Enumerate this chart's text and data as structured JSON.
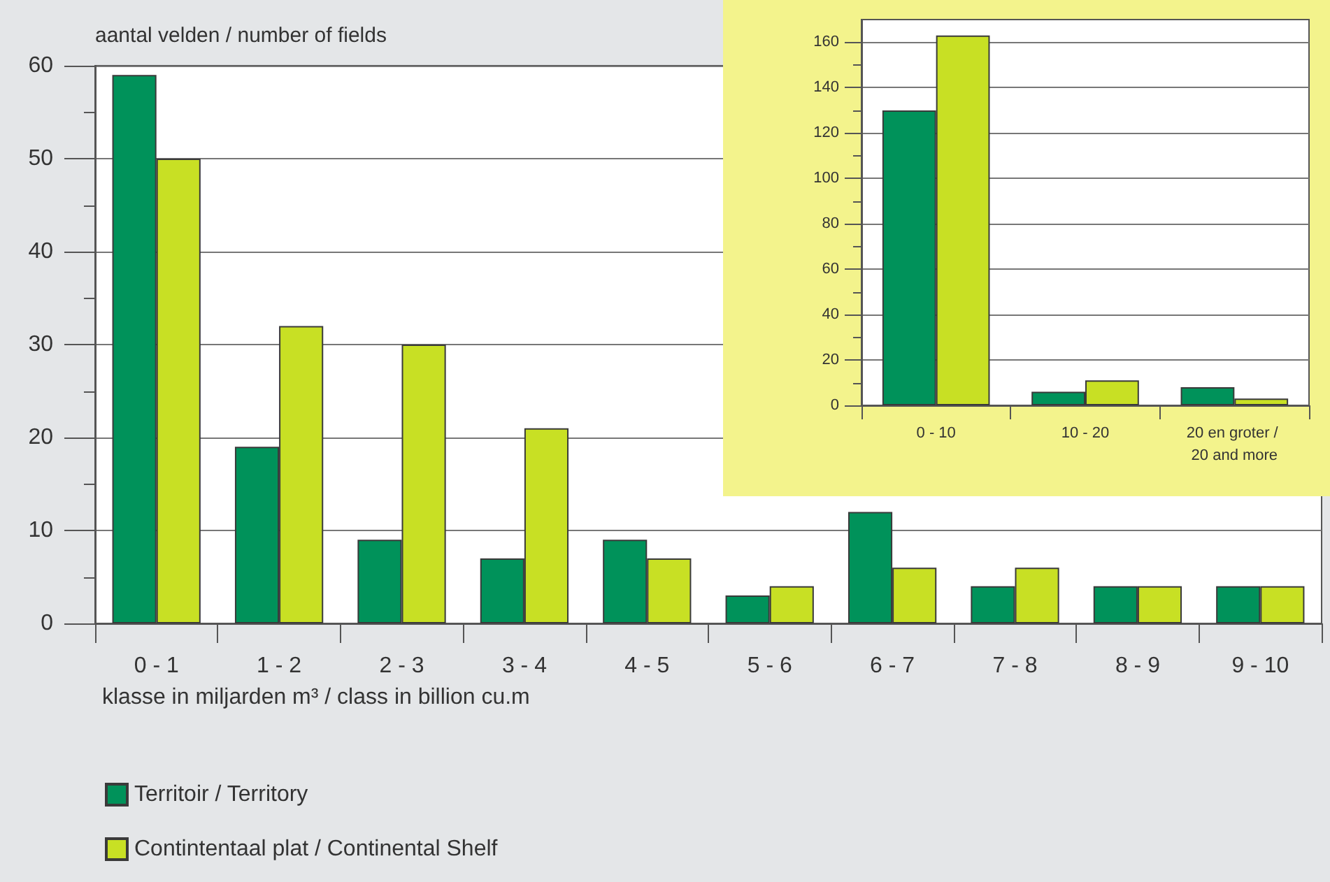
{
  "chart_data": [
    {
      "type": "bar",
      "ylabel": "aantal velden / number of fields",
      "xlabel": "klasse in miljarden m³ / class in billion cu.m",
      "categories": [
        "0 - 1",
        "1 - 2",
        "2 - 3",
        "3 - 4",
        "4 - 5",
        "5 - 6",
        "6 - 7",
        "7 - 8",
        "8 - 9",
        "9 - 10"
      ],
      "series": [
        {
          "name": "Territoir / Territory",
          "color": "#00925a",
          "values": [
            59,
            19,
            9,
            7,
            9,
            3,
            12,
            4,
            4,
            4
          ]
        },
        {
          "name": "Contintentaal plat / Continental Shelf",
          "color": "#c8e024",
          "values": [
            50,
            32,
            30,
            21,
            7,
            4,
            6,
            6,
            4,
            4
          ]
        }
      ],
      "ylim": [
        0,
        60
      ],
      "yticks": [
        0,
        10,
        20,
        30,
        40,
        50,
        60
      ],
      "grid": "y",
      "legend": "bottom left"
    },
    {
      "type": "bar",
      "categories": [
        "0 - 10",
        "10 - 20",
        "20 en groter / 20 and more"
      ],
      "series": [
        {
          "color": "#00925a",
          "values": [
            130,
            6,
            8
          ]
        },
        {
          "color": "#c8e024",
          "values": [
            163,
            11,
            3
          ]
        }
      ],
      "ylim": [
        0,
        170
      ],
      "yticks": [
        0,
        20,
        40,
        60,
        80,
        100,
        120,
        140,
        160
      ],
      "grid": "y"
    }
  ]
}
